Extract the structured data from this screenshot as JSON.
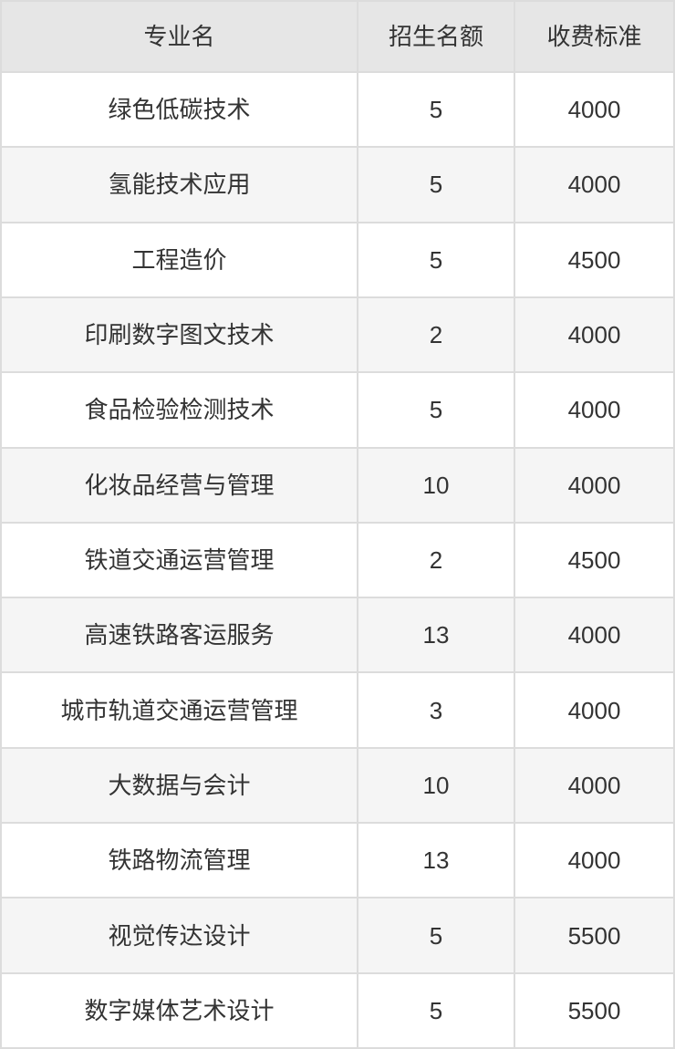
{
  "chart_data": {
    "type": "table",
    "title": "",
    "columns": [
      "专业名",
      "招生名额",
      "收费标准"
    ],
    "rows": [
      [
        "绿色低碳技术",
        "5",
        "4000"
      ],
      [
        "氢能技术应用",
        "5",
        "4000"
      ],
      [
        "工程造价",
        "5",
        "4500"
      ],
      [
        "印刷数字图文技术",
        "2",
        "4000"
      ],
      [
        "食品检验检测技术",
        "5",
        "4000"
      ],
      [
        "化妆品经营与管理",
        "10",
        "4000"
      ],
      [
        "铁道交通运营管理",
        "2",
        "4500"
      ],
      [
        "高速铁路客运服务",
        "13",
        "4000"
      ],
      [
        "城市轨道交通运营管理",
        "3",
        "4000"
      ],
      [
        "大数据与会计",
        "10",
        "4000"
      ],
      [
        "铁路物流管理",
        "13",
        "4000"
      ],
      [
        "视觉传达设计",
        "5",
        "5500"
      ],
      [
        "数字媒体艺术设计",
        "5",
        "5500"
      ]
    ],
    "layout": {
      "zebra_striping": true,
      "all_cells_centered": true
    }
  },
  "colors": {
    "header_bg": "#e6e6e6",
    "row_bg": "#ffffff",
    "row_alt_bg": "#f5f5f5",
    "border": "#dcdcdc",
    "text": "#333333"
  }
}
